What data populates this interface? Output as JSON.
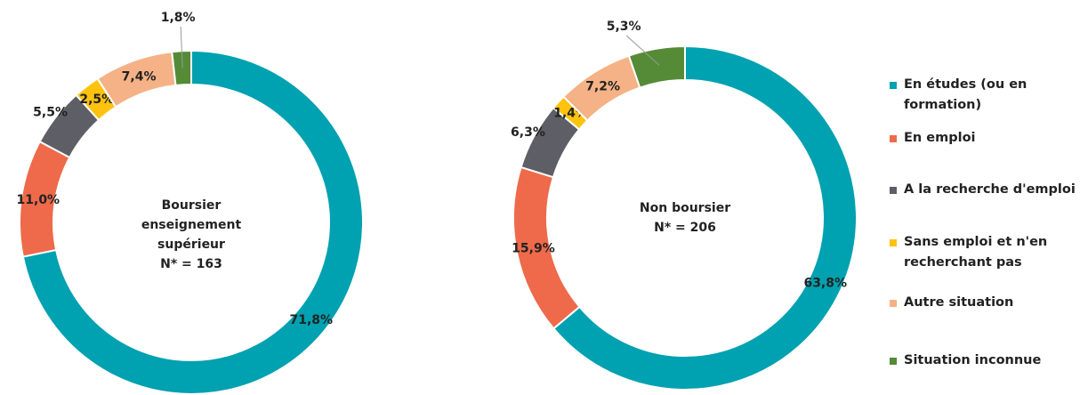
{
  "legend": {
    "items": [
      "En études (ou en formation)",
      "En emploi",
      "A la recherche d'emploi",
      "Sans emploi et n'en recherchant pas",
      "Autre situation",
      "Situation inconnue"
    ],
    "colors": [
      "#00a1b0",
      "#ee6a4a",
      "#5e5e66",
      "#ffc20e",
      "#f5b286",
      "#558b37"
    ]
  },
  "chart_data": [
    {
      "type": "pie",
      "title": "Boursier enseignement supérieur",
      "subtitle": "N* =  163",
      "values": [
        71.8,
        11.0,
        5.5,
        2.5,
        7.4,
        1.8
      ],
      "value_labels": [
        "71,8%",
        "11,0%",
        "5,5%",
        "2,5%",
        "7,4%",
        "1,8%"
      ]
    },
    {
      "type": "pie",
      "title": "Non boursier",
      "subtitle": "N* = 206",
      "values": [
        63.8,
        15.9,
        6.3,
        1.4,
        7.2,
        5.3
      ],
      "value_labels": [
        "63,8%",
        "15,9%",
        "6,3%",
        "1,4%",
        "7,2%",
        "5,3%"
      ]
    }
  ]
}
